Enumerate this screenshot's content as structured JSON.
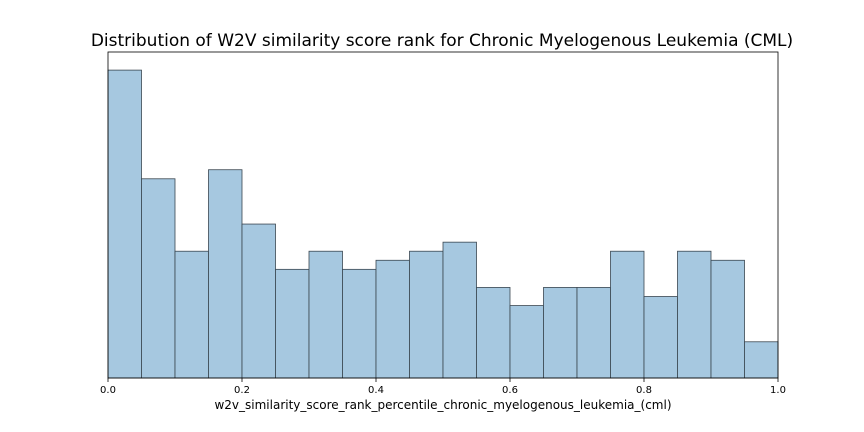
{
  "chart_data": {
    "type": "bar",
    "title": "Distribution of W2V similarity score rank for Chronic Myelogenous Leukemia (CML)",
    "xlabel": "w2v_similarity_score_rank_percentile_chronic_myelogenous_leukemia_(cml)",
    "ylabel": "",
    "xlim": [
      0.0,
      1.0
    ],
    "ylim": [
      0,
      36
    ],
    "xticks": [
      "0.0",
      "0.2",
      "0.4",
      "0.6",
      "0.8",
      "1.0"
    ],
    "yticks_visible": false,
    "grid": false,
    "bar_color": "#a6c8e0",
    "edge_color": "#3a4650",
    "bins": [
      {
        "x0": 0.0,
        "x1": 0.05,
        "count": 34
      },
      {
        "x0": 0.05,
        "x1": 0.1,
        "count": 22
      },
      {
        "x0": 0.1,
        "x1": 0.15,
        "count": 14
      },
      {
        "x0": 0.15,
        "x1": 0.2,
        "count": 23
      },
      {
        "x0": 0.2,
        "x1": 0.25,
        "count": 17
      },
      {
        "x0": 0.25,
        "x1": 0.3,
        "count": 12
      },
      {
        "x0": 0.3,
        "x1": 0.35,
        "count": 14
      },
      {
        "x0": 0.35,
        "x1": 0.4,
        "count": 12
      },
      {
        "x0": 0.4,
        "x1": 0.45,
        "count": 13
      },
      {
        "x0": 0.45,
        "x1": 0.5,
        "count": 14
      },
      {
        "x0": 0.5,
        "x1": 0.55,
        "count": 15
      },
      {
        "x0": 0.55,
        "x1": 0.6,
        "count": 10
      },
      {
        "x0": 0.6,
        "x1": 0.65,
        "count": 8
      },
      {
        "x0": 0.65,
        "x1": 0.7,
        "count": 10
      },
      {
        "x0": 0.7,
        "x1": 0.75,
        "count": 10
      },
      {
        "x0": 0.75,
        "x1": 0.8,
        "count": 14
      },
      {
        "x0": 0.8,
        "x1": 0.85,
        "count": 9
      },
      {
        "x0": 0.85,
        "x1": 0.9,
        "count": 14
      },
      {
        "x0": 0.9,
        "x1": 0.95,
        "count": 13
      },
      {
        "x0": 0.95,
        "x1": 1.0,
        "count": 4
      }
    ]
  }
}
